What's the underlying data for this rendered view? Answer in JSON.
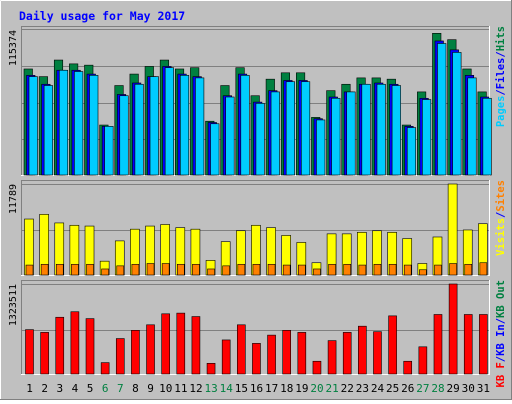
{
  "chart_data": [
    {
      "type": "bar",
      "panel": "hits",
      "title": "Daily usage for May 2017",
      "max_label": "115374",
      "ylim": [
        0,
        115374
      ],
      "right_legend": [
        {
          "text": "Pages",
          "color": "#00CCFF"
        },
        {
          "text": "Files",
          "color": "#0000FF"
        },
        {
          "text": "Hits",
          "color": "#008040"
        }
      ],
      "categories": [
        "1",
        "2",
        "3",
        "4",
        "5",
        "6",
        "7",
        "8",
        "9",
        "10",
        "11",
        "12",
        "13",
        "14",
        "15",
        "16",
        "17",
        "18",
        "19",
        "20",
        "21",
        "22",
        "23",
        "24",
        "25",
        "26",
        "27",
        "28",
        "29",
        "30",
        "31"
      ],
      "series": [
        {
          "name": "Hits",
          "color": "#008040",
          "values": [
            84000,
            78000,
            91000,
            88000,
            87000,
            40000,
            71000,
            80000,
            86000,
            91000,
            84000,
            85000,
            43000,
            71000,
            85000,
            63000,
            76000,
            81000,
            81000,
            46000,
            67000,
            72000,
            77000,
            77000,
            76000,
            40000,
            66000,
            112000,
            107000,
            84000,
            66000
          ]
        },
        {
          "name": "Files",
          "color": "#0000FF",
          "values": [
            79000,
            72000,
            83000,
            83000,
            80000,
            39000,
            64000,
            73000,
            78000,
            86000,
            80000,
            78000,
            42000,
            63000,
            80000,
            58000,
            67000,
            75000,
            75000,
            45000,
            62000,
            66000,
            72000,
            73000,
            72000,
            39000,
            61000,
            106000,
            99000,
            79000,
            62000
          ]
        },
        {
          "name": "Pages",
          "color": "#00CCFF",
          "values": [
            78000,
            71000,
            83000,
            82000,
            79000,
            39000,
            63000,
            72000,
            78000,
            85000,
            79000,
            77000,
            41000,
            62000,
            79000,
            57000,
            66000,
            74000,
            74000,
            44000,
            61000,
            66000,
            72000,
            72000,
            71000,
            38000,
            60000,
            104000,
            97000,
            77000,
            61000
          ]
        }
      ]
    },
    {
      "type": "bar",
      "panel": "visits",
      "max_label": "11789",
      "ylim": [
        0,
        11789
      ],
      "right_legend": [
        {
          "text": "Visits",
          "color": "#FFFF00"
        },
        {
          "text": "Sites",
          "color": "#FF8000"
        }
      ],
      "categories": [
        "1",
        "2",
        "3",
        "4",
        "5",
        "6",
        "7",
        "8",
        "9",
        "10",
        "11",
        "12",
        "13",
        "14",
        "15",
        "16",
        "17",
        "18",
        "19",
        "20",
        "21",
        "22",
        "23",
        "24",
        "25",
        "26",
        "27",
        "28",
        "29",
        "30",
        "31"
      ],
      "series": [
        {
          "name": "Visits",
          "color": "#FFFF00",
          "values": [
            7300,
            7900,
            6800,
            6500,
            6400,
            1900,
            4500,
            6000,
            6400,
            6600,
            6200,
            6000,
            2000,
            4400,
            5800,
            6500,
            6200,
            5200,
            4300,
            1700,
            5400,
            5400,
            5600,
            5800,
            5600,
            4800,
            1600,
            5000,
            11789,
            5900,
            6700
          ]
        },
        {
          "name": "Sites",
          "color": "#FF8000",
          "values": [
            1400,
            1500,
            1500,
            1500,
            1500,
            900,
            1300,
            1500,
            1600,
            1600,
            1500,
            1500,
            900,
            1300,
            1500,
            1500,
            1500,
            1400,
            1400,
            900,
            1500,
            1500,
            1400,
            1500,
            1500,
            1400,
            800,
            1400,
            1600,
            1500,
            1700
          ]
        }
      ]
    },
    {
      "type": "bar",
      "panel": "kbytes",
      "max_label": "1323511",
      "ylim": [
        0,
        1323511
      ],
      "right_legend": [
        {
          "text": "KB F",
          "color": "#FF0000"
        },
        {
          "text": "/",
          "color": "#0000FF"
        },
        {
          "text": "KB In",
          "color": "#0000FF"
        },
        {
          "text": "/",
          "color": "#0000FF"
        },
        {
          "text": "KB Out",
          "color": "#008040"
        }
      ],
      "categories": [
        "1",
        "2",
        "3",
        "4",
        "5",
        "6",
        "7",
        "8",
        "9",
        "10",
        "11",
        "12",
        "13",
        "14",
        "15",
        "16",
        "17",
        "18",
        "19",
        "20",
        "21",
        "22",
        "23",
        "24",
        "25",
        "26",
        "27",
        "28",
        "29",
        "30",
        "31"
      ],
      "series": [
        {
          "name": "KB F",
          "color": "#FF0000",
          "values": [
            660000,
            620000,
            840000,
            920000,
            820000,
            180000,
            530000,
            650000,
            730000,
            890000,
            900000,
            850000,
            170000,
            510000,
            730000,
            460000,
            580000,
            650000,
            620000,
            200000,
            500000,
            620000,
            710000,
            630000,
            860000,
            200000,
            410000,
            880000,
            1323511,
            880000,
            880000
          ]
        }
      ]
    }
  ],
  "x_labels": [
    {
      "text": "1",
      "weekend": false
    },
    {
      "text": "2",
      "weekend": false
    },
    {
      "text": "3",
      "weekend": false
    },
    {
      "text": "4",
      "weekend": false
    },
    {
      "text": "5",
      "weekend": false
    },
    {
      "text": "6",
      "weekend": true
    },
    {
      "text": "7",
      "weekend": true
    },
    {
      "text": "8",
      "weekend": false
    },
    {
      "text": "9",
      "weekend": false
    },
    {
      "text": "10",
      "weekend": false
    },
    {
      "text": "11",
      "weekend": false
    },
    {
      "text": "12",
      "weekend": false
    },
    {
      "text": "13",
      "weekend": true
    },
    {
      "text": "14",
      "weekend": true
    },
    {
      "text": "15",
      "weekend": false
    },
    {
      "text": "16",
      "weekend": false
    },
    {
      "text": "17",
      "weekend": false
    },
    {
      "text": "18",
      "weekend": false
    },
    {
      "text": "19",
      "weekend": false
    },
    {
      "text": "20",
      "weekend": true
    },
    {
      "text": "21",
      "weekend": true
    },
    {
      "text": "22",
      "weekend": false
    },
    {
      "text": "23",
      "weekend": false
    },
    {
      "text": "24",
      "weekend": false
    },
    {
      "text": "25",
      "weekend": false
    },
    {
      "text": "26",
      "weekend": false
    },
    {
      "text": "27",
      "weekend": true
    },
    {
      "text": "28",
      "weekend": true
    },
    {
      "text": "29",
      "weekend": false
    },
    {
      "text": "30",
      "weekend": false
    },
    {
      "text": "31",
      "weekend": false
    }
  ],
  "colors": {
    "background": "#C0C0C0",
    "title": "#0000FF",
    "weekday_label": "#000000",
    "weekend_label": "#008040",
    "frame_dark": "#808080",
    "frame_light": "#FFFFFF",
    "grid": "#808080"
  }
}
